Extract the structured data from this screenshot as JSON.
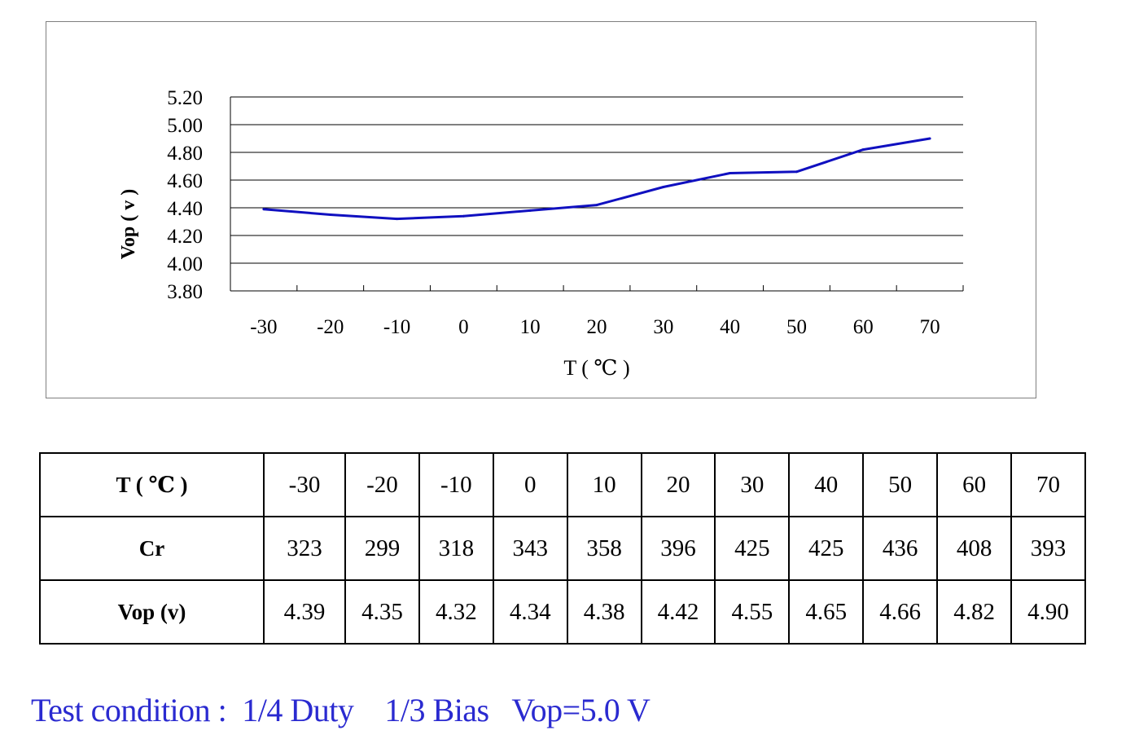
{
  "chart_data": {
    "type": "line",
    "title": "",
    "xlabel": "T ( ℃ )",
    "ylabel": "Vop ( v )",
    "x": [
      -30,
      -20,
      -10,
      0,
      10,
      20,
      30,
      40,
      50,
      60,
      70
    ],
    "x_tick_labels": [
      "-30",
      "-20",
      "-10",
      "0",
      "10",
      "20",
      "30",
      "40",
      "50",
      "60",
      "70"
    ],
    "y_tick_labels": [
      "5.20",
      "5.00",
      "4.80",
      "4.60",
      "4.40",
      "4.20",
      "4.00",
      "3.80"
    ],
    "ylim": [
      3.8,
      5.2
    ],
    "grid": true,
    "series": [
      {
        "name": "Vop",
        "color": "#1010c0",
        "values": [
          4.39,
          4.35,
          4.32,
          4.34,
          4.38,
          4.42,
          4.55,
          4.65,
          4.66,
          4.82,
          4.9
        ]
      }
    ]
  },
  "table": {
    "rows": [
      {
        "label": "T ( ℃ )",
        "cells": [
          "-30",
          "-20",
          "-10",
          "0",
          "10",
          "20",
          "30",
          "40",
          "50",
          "60",
          "70"
        ]
      },
      {
        "label": "Cr",
        "cells": [
          "323",
          "299",
          "318",
          "343",
          "358",
          "396",
          "425",
          "425",
          "436",
          "408",
          "393"
        ]
      },
      {
        "label": "Vop (v)",
        "cells": [
          "4.39",
          "4.35",
          "4.32",
          "4.34",
          "4.38",
          "4.42",
          "4.55",
          "4.65",
          "4.66",
          "4.82",
          "4.90"
        ]
      }
    ]
  },
  "footer": {
    "test_condition": "Test condition :  1/4 Duty    1/3 Bias   Vop=5.0 V"
  }
}
